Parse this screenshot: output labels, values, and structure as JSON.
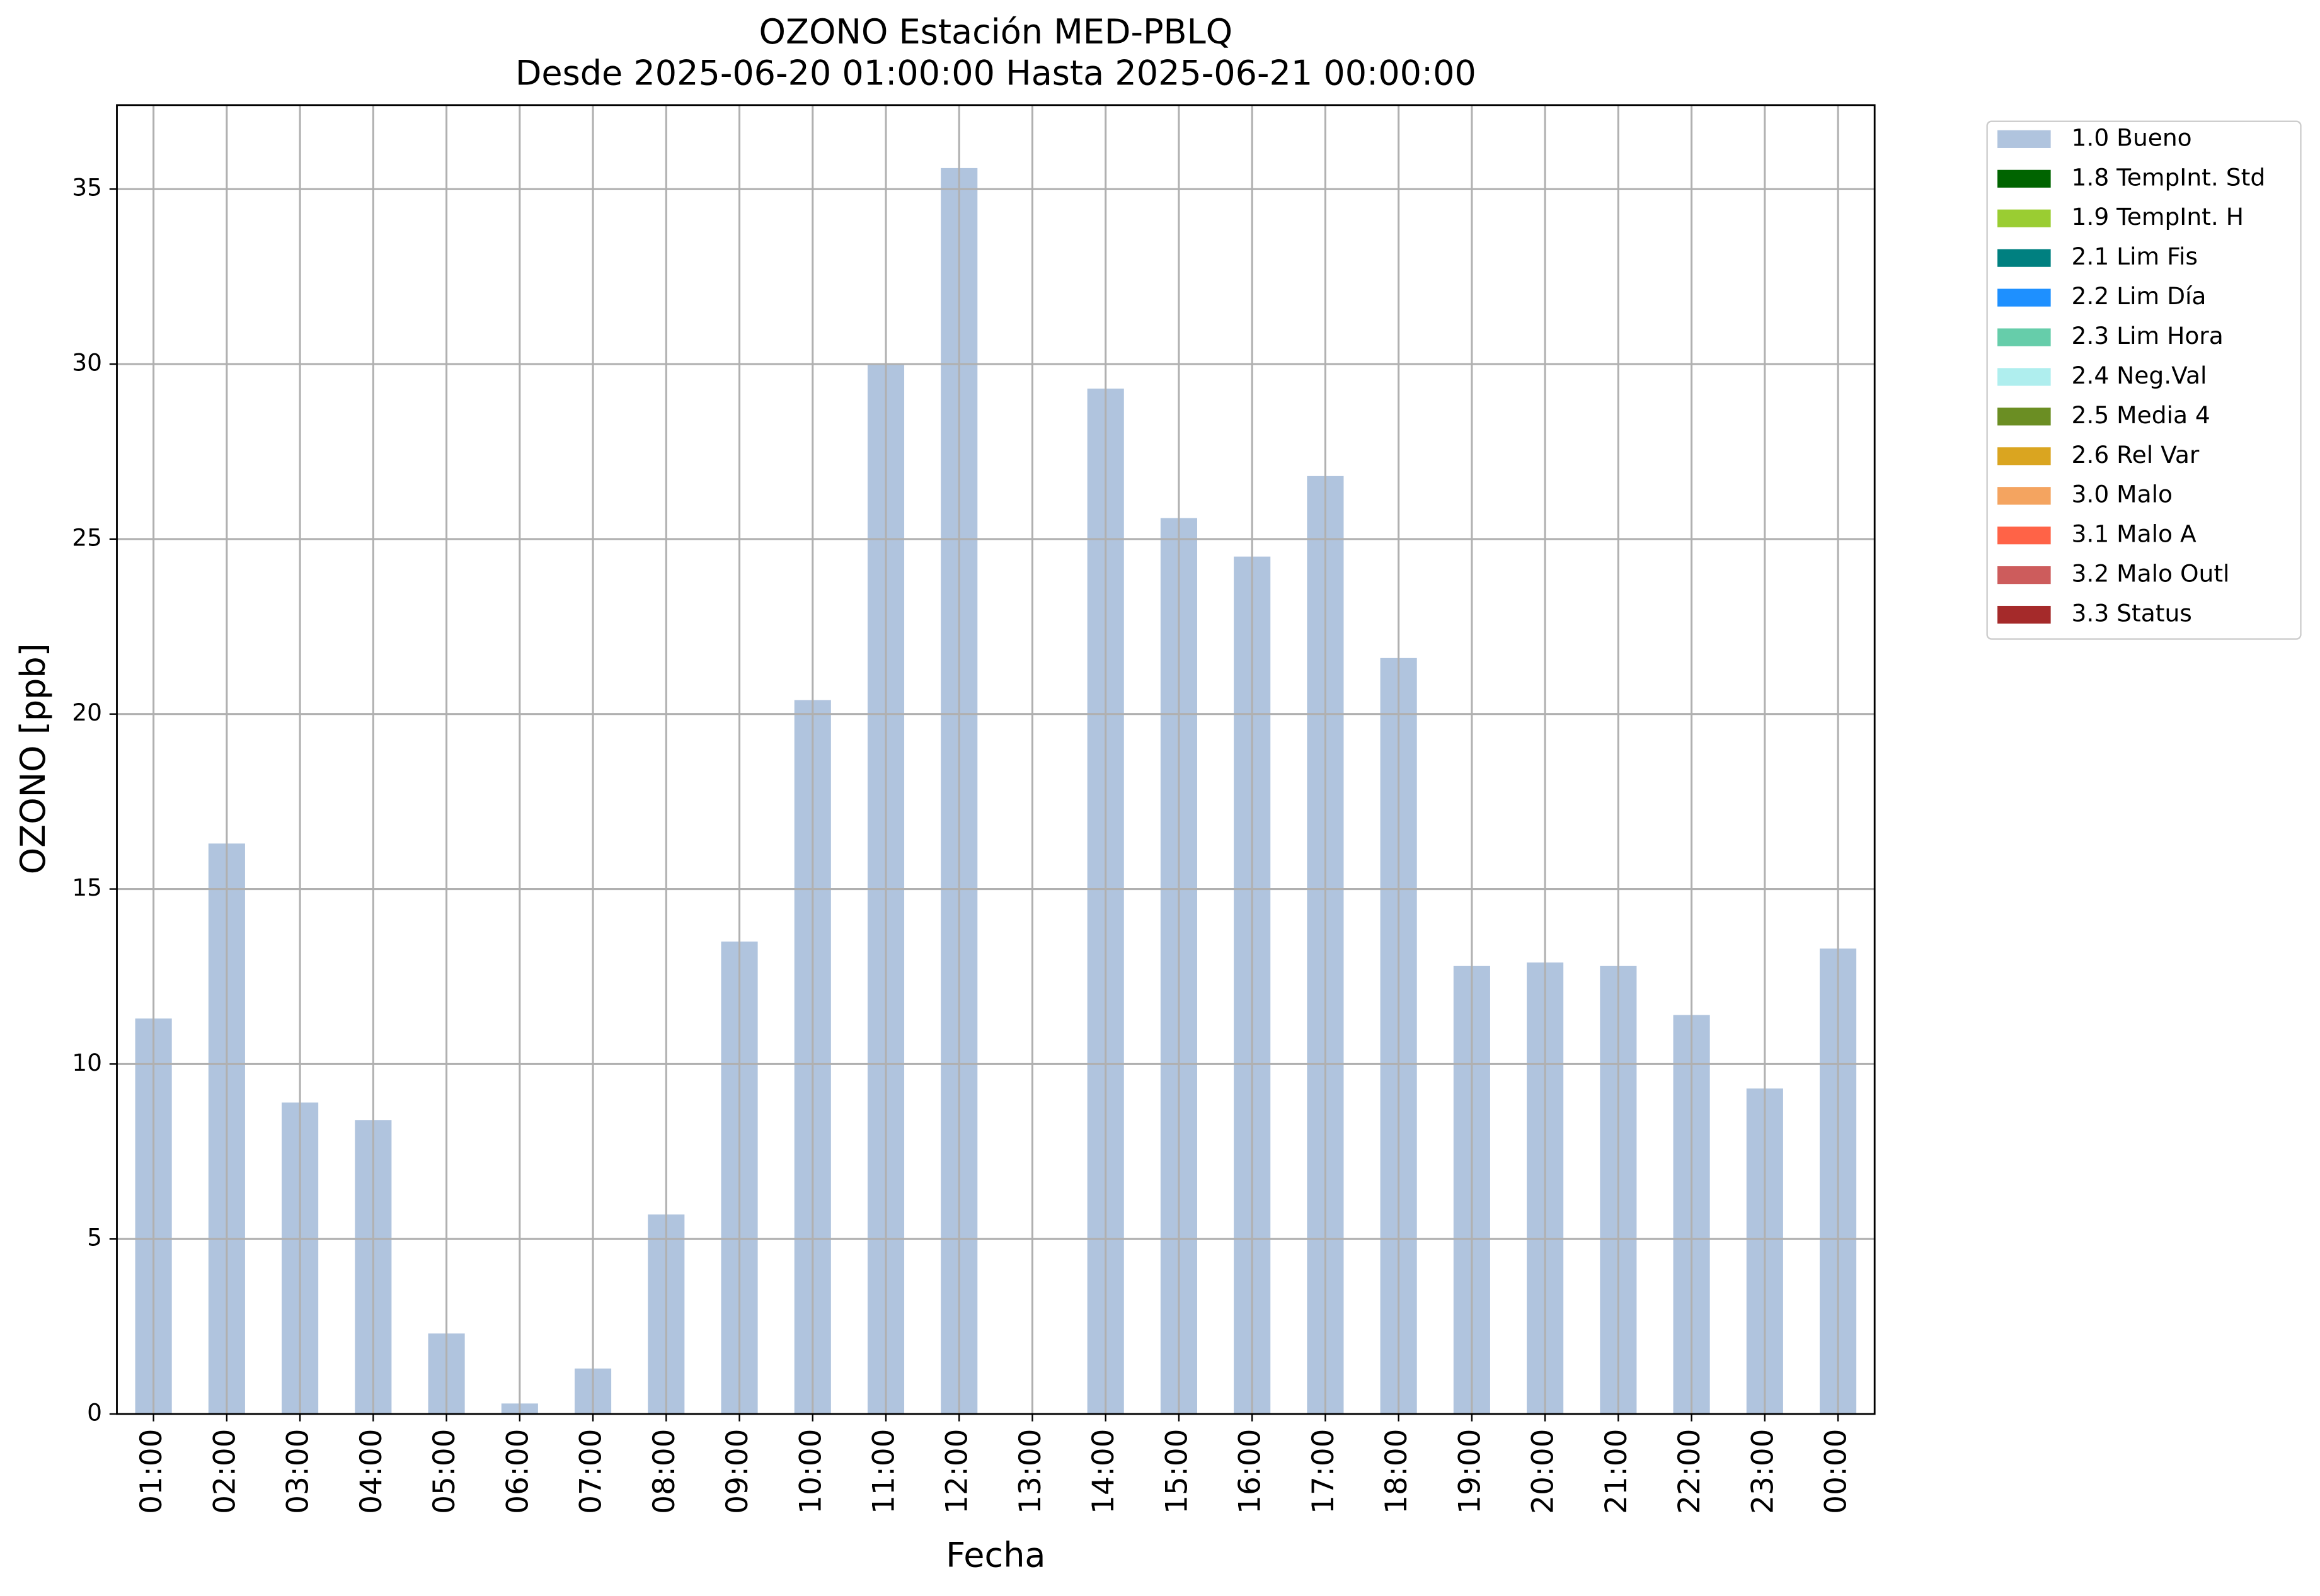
{
  "chart_data": {
    "type": "bar",
    "title": "OZONO Estación MED-PBLQ",
    "subtitle": "Desde 2025-06-20 01:00:00 Hasta 2025-06-21 00:00:00",
    "x_label": "Fecha",
    "y_label": "OZONO [ppb]",
    "categories": [
      "01:00",
      "02:00",
      "03:00",
      "04:00",
      "05:00",
      "06:00",
      "07:00",
      "08:00",
      "09:00",
      "10:00",
      "11:00",
      "12:00",
      "13:00",
      "14:00",
      "15:00",
      "16:00",
      "17:00",
      "18:00",
      "19:00",
      "20:00",
      "21:00",
      "22:00",
      "23:00",
      "00:00"
    ],
    "series": [
      {
        "name": "1.0 Bueno",
        "color": "#b0c4de",
        "values": [
          11.3,
          16.3,
          8.9,
          8.4,
          2.3,
          0.3,
          1.3,
          5.7,
          13.5,
          20.4,
          30.0,
          35.6,
          null,
          29.3,
          25.6,
          24.5,
          26.8,
          21.6,
          12.8,
          12.9,
          12.8,
          11.4,
          9.3,
          13.3
        ]
      },
      {
        "name": "1.8 TempInt. Std",
        "color": "#006400",
        "values": [
          null,
          null,
          null,
          null,
          null,
          null,
          null,
          null,
          null,
          null,
          null,
          null,
          null,
          null,
          null,
          null,
          null,
          null,
          null,
          null,
          null,
          null,
          null,
          null
        ]
      },
      {
        "name": "1.9 TempInt. H",
        "color": "#9acd32",
        "values": [
          null,
          null,
          null,
          null,
          null,
          null,
          null,
          null,
          null,
          null,
          null,
          null,
          null,
          null,
          null,
          null,
          null,
          null,
          null,
          null,
          null,
          null,
          null,
          null
        ]
      },
      {
        "name": "2.1 Lim Fis",
        "color": "#008080",
        "values": [
          null,
          null,
          null,
          null,
          null,
          null,
          null,
          null,
          null,
          null,
          null,
          null,
          null,
          null,
          null,
          null,
          null,
          null,
          null,
          null,
          null,
          null,
          null,
          null
        ]
      },
      {
        "name": "2.2 Lim Día",
        "color": "#1e90ff",
        "values": [
          null,
          null,
          null,
          null,
          null,
          null,
          null,
          null,
          null,
          null,
          null,
          null,
          null,
          null,
          null,
          null,
          null,
          null,
          null,
          null,
          null,
          null,
          null,
          null
        ]
      },
      {
        "name": "2.3 Lim Hora",
        "color": "#66cdaa",
        "values": [
          null,
          null,
          null,
          null,
          null,
          null,
          null,
          null,
          null,
          null,
          null,
          null,
          null,
          null,
          null,
          null,
          null,
          null,
          null,
          null,
          null,
          null,
          null,
          null
        ]
      },
      {
        "name": "2.4 Neg.Val",
        "color": "#afeeee",
        "values": [
          null,
          null,
          null,
          null,
          null,
          null,
          null,
          null,
          null,
          null,
          null,
          null,
          null,
          null,
          null,
          null,
          null,
          null,
          null,
          null,
          null,
          null,
          null,
          null
        ]
      },
      {
        "name": "2.5 Media 4",
        "color": "#6b8e23",
        "values": [
          null,
          null,
          null,
          null,
          null,
          null,
          null,
          null,
          null,
          null,
          null,
          null,
          null,
          null,
          null,
          null,
          null,
          null,
          null,
          null,
          null,
          null,
          null,
          null
        ]
      },
      {
        "name": "2.6 Rel Var",
        "color": "#daa520",
        "values": [
          null,
          null,
          null,
          null,
          null,
          null,
          null,
          null,
          null,
          null,
          null,
          null,
          null,
          null,
          null,
          null,
          null,
          null,
          null,
          null,
          null,
          null,
          null,
          null
        ]
      },
      {
        "name": "3.0 Malo",
        "color": "#f4a460",
        "values": [
          null,
          null,
          null,
          null,
          null,
          null,
          null,
          null,
          null,
          null,
          null,
          null,
          null,
          null,
          null,
          null,
          null,
          null,
          null,
          null,
          null,
          null,
          null,
          null
        ]
      },
      {
        "name": "3.1 Malo A",
        "color": "#ff6347",
        "values": [
          null,
          null,
          null,
          null,
          null,
          null,
          null,
          null,
          null,
          null,
          null,
          null,
          null,
          null,
          null,
          null,
          null,
          null,
          null,
          null,
          null,
          null,
          null,
          null
        ]
      },
      {
        "name": "3.2 Malo Outl",
        "color": "#cd5c5c",
        "values": [
          null,
          null,
          null,
          null,
          null,
          null,
          null,
          null,
          null,
          null,
          null,
          null,
          null,
          null,
          null,
          null,
          null,
          null,
          null,
          null,
          null,
          null,
          null,
          null
        ]
      },
      {
        "name": "3.3 Status",
        "color": "#a52a2a",
        "values": [
          null,
          null,
          null,
          null,
          null,
          null,
          null,
          null,
          null,
          null,
          null,
          null,
          null,
          null,
          null,
          null,
          null,
          null,
          null,
          null,
          null,
          null,
          null,
          null
        ]
      }
    ],
    "stacked": true,
    "ylim": [
      0,
      37.4
    ],
    "yticks": [
      0,
      5,
      10,
      15,
      20,
      25,
      30,
      35
    ],
    "grid": true,
    "legend": "outside-upper-right"
  }
}
